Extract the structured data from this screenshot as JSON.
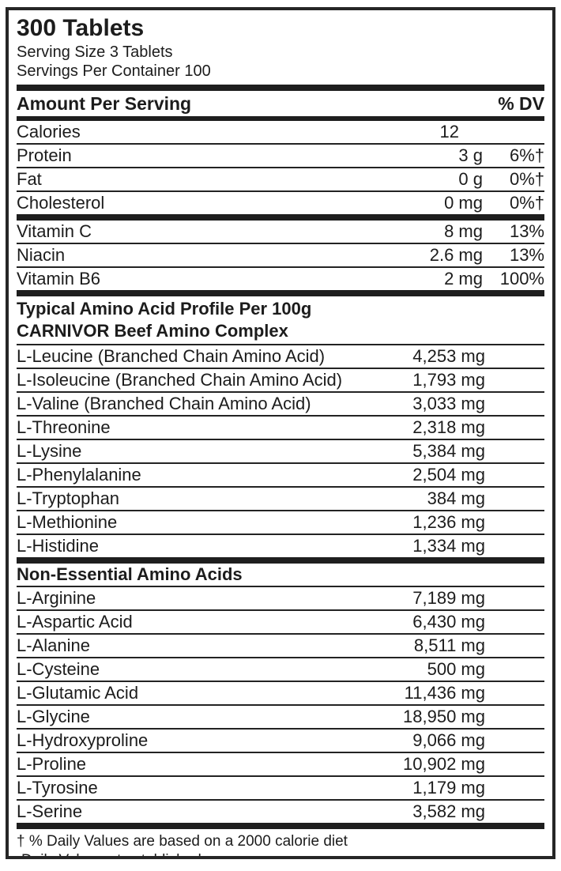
{
  "label": {
    "title": "300 Tablets",
    "serving_size": "Serving Size 3 Tablets",
    "servings_per_container": "Servings Per Container 100",
    "header": {
      "left": "Amount Per Serving",
      "right": "% DV"
    },
    "nutrition_rows": [
      {
        "name": "Calories",
        "amount": "12",
        "dv": ""
      },
      {
        "name": "Protein",
        "amount": "3 g",
        "dv": "6%†"
      },
      {
        "name": "Fat",
        "amount": "0 g",
        "dv": "0%†"
      },
      {
        "name": "Cholesterol",
        "amount": "0 mg",
        "dv": "0%†"
      }
    ],
    "vitamin_rows": [
      {
        "name": "Vitamin C",
        "amount": "8 mg",
        "dv": "13%"
      },
      {
        "name": "Niacin",
        "amount": "2.6 mg",
        "dv": "13%"
      },
      {
        "name": "Vitamin B6",
        "amount": "2 mg",
        "dv": "100%"
      }
    ],
    "amino_profile_header": {
      "line1": "Typical Amino Acid Profile Per 100g",
      "line2": "CARNIVOR Beef Amino Complex"
    },
    "essential_aminos": [
      {
        "name": "L-Leucine (Branched Chain Amino Acid)",
        "value": "4,253 mg"
      },
      {
        "name": "L-Isoleucine (Branched Chain Amino Acid)",
        "value": "1,793 mg"
      },
      {
        "name": "L-Valine (Branched Chain Amino Acid)",
        "value": "3,033 mg"
      },
      {
        "name": "L-Threonine",
        "value": "2,318 mg"
      },
      {
        "name": "L-Lysine",
        "value": "5,384 mg"
      },
      {
        "name": "L-Phenylalanine",
        "value": "2,504 mg"
      },
      {
        "name": "L-Tryptophan",
        "value": "384 mg"
      },
      {
        "name": "L-Methionine",
        "value": "1,236 mg"
      },
      {
        "name": "L-Histidine",
        "value": "1,334 mg"
      }
    ],
    "non_essential_header": "Non-Essential Amino Acids",
    "non_essential_aminos": [
      {
        "name": "L-Arginine",
        "value": "7,189 mg"
      },
      {
        "name": "L-Aspartic Acid",
        "value": "6,430 mg"
      },
      {
        "name": "L-Alanine",
        "value": "8,511 mg"
      },
      {
        "name": "L-Cysteine",
        "value": "500 mg"
      },
      {
        "name": "L-Glutamic Acid",
        "value": "11,436 mg"
      },
      {
        "name": "L-Glycine",
        "value": "18,950 mg"
      },
      {
        "name": "L-Hydroxyproline",
        "value": "9,066 mg"
      },
      {
        "name": "L-Proline",
        "value": "10,902 mg"
      },
      {
        "name": "L-Tyrosine",
        "value": "1,179 mg"
      },
      {
        "name": "L-Serine",
        "value": "3,582 mg"
      }
    ],
    "footnotes": {
      "line1": "† % Daily Values are based on a 2000 calorie diet",
      "line2": "Daily Value not established"
    }
  }
}
